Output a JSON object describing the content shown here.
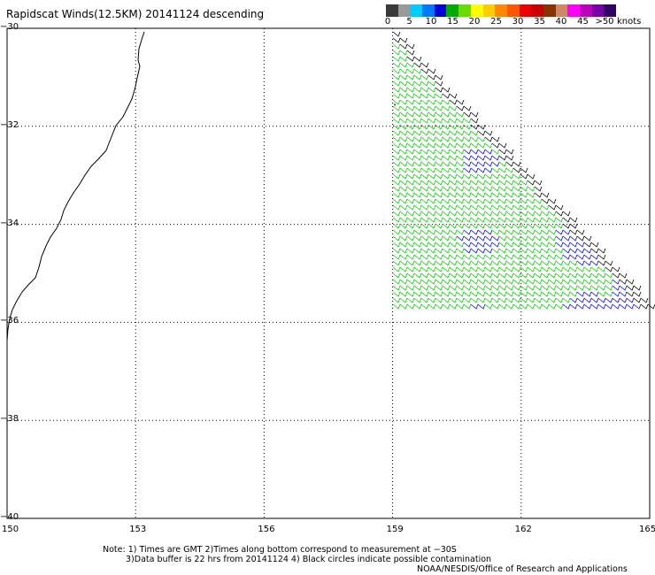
{
  "title": "Rapidscat Winds(12.5KM) 20141124 descending",
  "colorbar": {
    "labels": [
      "0",
      "5",
      "10",
      "15",
      "20",
      "25",
      "30",
      "35",
      "40",
      "45",
      ">50"
    ],
    "unit": "knots",
    "colors": [
      "#3a3a3a",
      "#9a9a9a",
      "#00ccff",
      "#0077ff",
      "#0000dd",
      "#00aa00",
      "#66dd00",
      "#ffff00",
      "#ffcc00",
      "#ff8800",
      "#ff5500",
      "#ee0000",
      "#cc0000",
      "#883300",
      "#cc8866",
      "#ff00ff",
      "#bb00bb",
      "#7700aa",
      "#330066"
    ]
  },
  "map": {
    "lon_range": [
      150,
      165
    ],
    "lat_range": [
      -40,
      -30
    ],
    "lon_ticks": [
      "150",
      "153",
      "156",
      "159",
      "162",
      "165"
    ],
    "lat_ticks": [
      "-30",
      "-32",
      "-34",
      "-36",
      "-38",
      "-40"
    ],
    "grid": "dotted",
    "wind_colors": {
      "calm": "#000000",
      "blue": "#0000ff",
      "green": "#00cc00"
    }
  },
  "notes": [
    "Note: 1) Times are GMT 2)Times along bottom correspond to measurement at −30S",
    "3)Data buffer is 22 hrs from 20141124 4) Black circles indicate possible contamination",
    "NOAA/NESDIS/Office of Research and Applications"
  ]
}
